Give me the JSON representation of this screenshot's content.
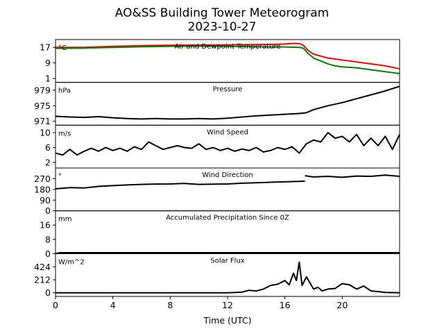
{
  "chart_data": {
    "type": "line",
    "title": "AO&SS Building Tower Meteorogram",
    "subtitle": "2023-10-27",
    "xlabel": "Time (UTC)",
    "xlim": [
      0,
      24
    ],
    "x_ticks": [
      0,
      4,
      8,
      12,
      16,
      20
    ],
    "x_tick_labels": [
      "0",
      "4",
      "8",
      "12",
      "16",
      "20"
    ],
    "grid": false,
    "panels": [
      {
        "title": "Air and Dewpoint Temperature",
        "unit": "°C",
        "ylim": [
          -1,
          21
        ],
        "yticks": [
          1,
          9,
          17
        ],
        "ytick_labels": [
          "1",
          "9",
          "17"
        ],
        "series": [
          {
            "color": "#ff0000",
            "x": [
              0,
              2,
              4,
              6,
              8,
              10,
              12,
              14,
              15,
              16,
              16.5,
              17,
              17.3,
              17.6,
              18,
              18.5,
              19,
              20,
              21,
              22,
              23,
              24
            ],
            "values": [
              17.0,
              17.0,
              17.5,
              17.9,
              18.1,
              18.2,
              18.3,
              18.4,
              18.5,
              18.7,
              19.0,
              19.0,
              18.0,
              15.5,
              13.5,
              12.5,
              11.5,
              10.5,
              9.5,
              8.5,
              7.5,
              6.0
            ]
          },
          {
            "color": "#008000",
            "x": [
              0,
              2,
              4,
              6,
              8,
              10,
              12,
              14,
              16,
              17,
              17.3,
              17.6,
              18,
              18.5,
              19,
              19.5,
              20,
              21,
              22,
              23,
              24
            ],
            "values": [
              16.5,
              16.6,
              17.0,
              17.3,
              17.5,
              17.6,
              17.5,
              17.3,
              17.2,
              17.0,
              16.5,
              14.0,
              11.5,
              10.0,
              8.5,
              7.5,
              7.0,
              6.5,
              5.5,
              4.5,
              3.5
            ]
          }
        ]
      },
      {
        "title": "Pressure",
        "unit": "hPa",
        "ylim": [
          970,
          981
        ],
        "yticks": [
          971,
          975,
          979
        ],
        "ytick_labels": [
          "971",
          "975",
          "979"
        ],
        "series": [
          {
            "color": "#000000",
            "x": [
              0,
              1,
              2,
              3,
              4,
              5,
              6,
              7,
              8,
              9,
              10,
              11,
              12,
              13,
              14,
              15,
              16,
              17,
              17.5,
              18,
              19,
              20,
              21,
              22,
              23,
              24
            ],
            "values": [
              972.3,
              972.1,
              972.0,
              972.2,
              971.9,
              971.7,
              971.6,
              971.7,
              971.6,
              971.6,
              971.7,
              971.6,
              971.8,
              972.1,
              972.4,
              972.6,
              972.8,
              973.0,
              973.2,
              974.0,
              975.0,
              975.8,
              976.8,
              977.8,
              978.8,
              980.0
            ]
          }
        ]
      },
      {
        "title": "Wind Speed",
        "unit": "m/s",
        "ylim": [
          0.5,
          12
        ],
        "yticks": [
          2,
          6,
          10
        ],
        "ytick_labels": [
          "2",
          "6",
          "10"
        ],
        "series": [
          {
            "color": "#000000",
            "x": [
              0,
              0.5,
              1,
              1.5,
              2,
              2.5,
              3,
              3.5,
              4,
              4.5,
              5,
              5.5,
              6,
              6.5,
              7,
              7.5,
              8,
              8.5,
              9,
              9.5,
              10,
              10.5,
              11,
              11.5,
              12,
              12.5,
              13,
              13.5,
              14,
              14.5,
              15,
              15.5,
              16,
              16.5,
              17,
              17.5,
              18,
              18.5,
              19,
              19.5,
              20,
              20.5,
              21,
              21.5,
              22,
              22.5,
              23,
              23.5,
              24
            ],
            "values": [
              4.5,
              4.0,
              5.5,
              4.0,
              5.0,
              5.8,
              5.0,
              6.0,
              5.2,
              5.8,
              5.0,
              6.2,
              5.5,
              7.5,
              6.5,
              5.5,
              6.0,
              6.5,
              6.0,
              5.8,
              7.0,
              5.5,
              6.0,
              5.2,
              5.8,
              5.0,
              5.6,
              5.2,
              6.0,
              4.8,
              5.2,
              6.0,
              5.5,
              6.2,
              4.5,
              7.0,
              8.0,
              7.5,
              10.0,
              8.5,
              9.0,
              7.5,
              9.5,
              6.5,
              8.5,
              6.5,
              9.0,
              5.5,
              9.5
            ]
          }
        ]
      },
      {
        "title": "Wind Direction",
        "unit": "°",
        "ylim": [
          0,
          360
        ],
        "yticks": [
          0,
          90,
          180,
          270
        ],
        "ytick_labels": [
          "0",
          "90",
          "180",
          "270"
        ],
        "series": [
          {
            "color": "#000000",
            "x": [
              0,
              1,
              2,
              3,
              4,
              5,
              6,
              7,
              8,
              9,
              10,
              11,
              12,
              13,
              14,
              15,
              16,
              17,
              17.4
            ],
            "values": [
              185,
              195,
              192,
              205,
              212,
              218,
              222,
              225,
              226,
              230,
              222,
              224,
              226,
              232,
              236,
              240,
              244,
              248,
              250
            ]
          },
          {
            "color": "#000000",
            "x": [
              17.4,
              18,
              19,
              20,
              21,
              22,
              23,
              24
            ],
            "values": [
              295,
              285,
              290,
              282,
              292,
              290,
              300,
              290
            ]
          }
        ]
      },
      {
        "title": "Accumulated Precipitation Since 0Z",
        "unit": "mm",
        "ylim": [
          0,
          24
        ],
        "yticks": [
          0,
          8,
          16
        ],
        "ytick_labels": [
          "0",
          "8",
          "16"
        ],
        "series": [
          {
            "color": "#000000",
            "x": [
              0,
              0.3,
              4,
              24
            ],
            "values": [
              0,
              0.5,
              0.5,
              0.5
            ]
          }
        ]
      },
      {
        "title": "Solar Flux",
        "unit": "W/m^2",
        "ylim": [
          -60,
          640
        ],
        "yticks": [
          0,
          212,
          424
        ],
        "ytick_labels": [
          "0",
          "212",
          "424"
        ],
        "series": [
          {
            "color": "#000000",
            "x": [
              0,
              12,
              13,
              13.5,
              14,
              14.5,
              15,
              15.5,
              16,
              16.3,
              16.6,
              16.8,
              17,
              17.2,
              17.5,
              18,
              18.3,
              18.6,
              19,
              19.5,
              20,
              20.5,
              21,
              21.5,
              22,
              22.5,
              23,
              24
            ],
            "values": [
              0,
              0,
              10,
              40,
              30,
              60,
              120,
              140,
              200,
              130,
              320,
              200,
              500,
              120,
              260,
              60,
              90,
              30,
              60,
              70,
              150,
              130,
              60,
              110,
              30,
              20,
              5,
              0
            ]
          }
        ]
      }
    ]
  }
}
